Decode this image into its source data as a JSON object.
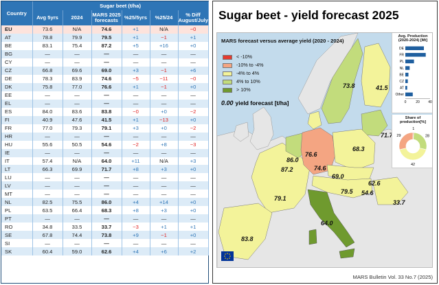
{
  "table": {
    "header_product": "Sugar beet (t/ha)",
    "col_country": "Country",
    "cols": [
      "Avg 5yrs",
      "2024",
      "MARS 2025 forecasts",
      "%25/5yrs",
      "%25/24",
      "% Diff August/July"
    ],
    "rows": [
      {
        "c": "EU",
        "a": "73.6",
        "b": "N/A",
        "f": "74.6",
        "p5": "+1",
        "p24": "N/A",
        "d": "−0",
        "eu": true
      },
      {
        "c": "AT",
        "a": "78.8",
        "b": "79.9",
        "f": "79.5",
        "p5": "+1",
        "p24": "−1",
        "d": "+1"
      },
      {
        "c": "BE",
        "a": "83.1",
        "b": "75.4",
        "f": "87.2",
        "p5": "+5",
        "p24": "+16",
        "d": "+0"
      },
      {
        "c": "BG",
        "a": "—",
        "b": "—",
        "f": "—",
        "p5": "—",
        "p24": "—",
        "d": "—"
      },
      {
        "c": "CY",
        "a": "—",
        "b": "—",
        "f": "—",
        "p5": "—",
        "p24": "—",
        "d": "—"
      },
      {
        "c": "CZ",
        "a": "66.8",
        "b": "69.6",
        "f": "69.0",
        "p5": "+3",
        "p24": "−1",
        "d": "+6"
      },
      {
        "c": "DE",
        "a": "78.3",
        "b": "83.9",
        "f": "74.6",
        "p5": "−5",
        "p24": "−11",
        "d": "−0"
      },
      {
        "c": "DK",
        "a": "75.8",
        "b": "77.0",
        "f": "76.6",
        "p5": "+1",
        "p24": "−1",
        "d": "+0"
      },
      {
        "c": "EE",
        "a": "—",
        "b": "—",
        "f": "—",
        "p5": "—",
        "p24": "—",
        "d": "—"
      },
      {
        "c": "EL",
        "a": "—",
        "b": "—",
        "f": "—",
        "p5": "—",
        "p24": "—",
        "d": "—"
      },
      {
        "c": "ES",
        "a": "84.0",
        "b": "83.6",
        "f": "83.8",
        "p5": "−0",
        "p24": "+0",
        "d": "−2"
      },
      {
        "c": "FI",
        "a": "40.9",
        "b": "47.6",
        "f": "41.5",
        "p5": "+1",
        "p24": "−13",
        "d": "+0"
      },
      {
        "c": "FR",
        "a": "77.0",
        "b": "79.3",
        "f": "79.1",
        "p5": "+3",
        "p24": "+0",
        "d": "−2"
      },
      {
        "c": "HR",
        "a": "—",
        "b": "—",
        "f": "—",
        "p5": "—",
        "p24": "—",
        "d": "—"
      },
      {
        "c": "HU",
        "a": "55.6",
        "b": "50.5",
        "f": "54.6",
        "p5": "−2",
        "p24": "+8",
        "d": "−3"
      },
      {
        "c": "IE",
        "a": "—",
        "b": "—",
        "f": "—",
        "p5": "—",
        "p24": "—",
        "d": "—"
      },
      {
        "c": "IT",
        "a": "57.4",
        "b": "N/A",
        "f": "64.0",
        "p5": "+11",
        "p24": "N/A",
        "d": "+3"
      },
      {
        "c": "LT",
        "a": "66.3",
        "b": "69.9",
        "f": "71.7",
        "p5": "+8",
        "p24": "+3",
        "d": "+0"
      },
      {
        "c": "LU",
        "a": "—",
        "b": "—",
        "f": "—",
        "p5": "—",
        "p24": "—",
        "d": "—"
      },
      {
        "c": "LV",
        "a": "—",
        "b": "—",
        "f": "—",
        "p5": "—",
        "p24": "—",
        "d": "—"
      },
      {
        "c": "MT",
        "a": "—",
        "b": "—",
        "f": "—",
        "p5": "—",
        "p24": "—",
        "d": "—"
      },
      {
        "c": "NL",
        "a": "82.5",
        "b": "75.5",
        "f": "86.0",
        "p5": "+4",
        "p24": "+14",
        "d": "+0"
      },
      {
        "c": "PL",
        "a": "63.5",
        "b": "66.4",
        "f": "68.3",
        "p5": "+8",
        "p24": "+3",
        "d": "+0"
      },
      {
        "c": "PT",
        "a": "—",
        "b": "—",
        "f": "—",
        "p5": "—",
        "p24": "—",
        "d": "—"
      },
      {
        "c": "RO",
        "a": "34.8",
        "b": "33.5",
        "f": "33.7",
        "p5": "−3",
        "p24": "+1",
        "d": "+1"
      },
      {
        "c": "SE",
        "a": "67.8",
        "b": "74.4",
        "f": "73.8",
        "p5": "+9",
        "p24": "−1",
        "d": "+0"
      },
      {
        "c": "SI",
        "a": "—",
        "b": "—",
        "f": "—",
        "p5": "—",
        "p24": "—",
        "d": "—"
      },
      {
        "c": "SK",
        "a": "60.4",
        "b": "59.0",
        "f": "62.6",
        "p5": "+4",
        "p24": "+6",
        "d": "+2"
      }
    ]
  },
  "map": {
    "title": "Sugar beet - yield forecast 2025",
    "legend_title": "MARS forecast versus average yield (2020 - 2024)",
    "legend": [
      {
        "label": "< -10%",
        "color": "#e53a2f"
      },
      {
        "label": "-10% to -4%",
        "color": "#f4a582"
      },
      {
        "label": "-4% to 4%",
        "color": "#f3f39a"
      },
      {
        "label": "4% to 10%",
        "color": "#c2dc7c"
      },
      {
        "label": "> 10%",
        "color": "#6f9a2e"
      }
    ],
    "zero_value": "0.00",
    "zero_label": "yield forecast [t/ha]",
    "labels": [
      {
        "v": "73.8",
        "k": "SE"
      },
      {
        "v": "41.5",
        "k": "FI"
      },
      {
        "v": "76.6",
        "k": "DK"
      },
      {
        "v": "71.7",
        "k": "LT"
      },
      {
        "v": "86.0",
        "k": "NL"
      },
      {
        "v": "87.2",
        "k": "BE"
      },
      {
        "v": "74.6",
        "k": "DE"
      },
      {
        "v": "68.3",
        "k": "PL"
      },
      {
        "v": "69.0",
        "k": "CZ"
      },
      {
        "v": "62.6",
        "k": "SK"
      },
      {
        "v": "54.6",
        "k": "HU"
      },
      {
        "v": "79.5",
        "k": "AT"
      },
      {
        "v": "79.1",
        "k": "FR"
      },
      {
        "v": "33.7",
        "k": "RO"
      },
      {
        "v": "64.0",
        "k": "IT"
      },
      {
        "v": "83.8",
        "k": "ES"
      }
    ],
    "footer": "MARS Bulletin Vol. 33 No.7 (2025)",
    "colors": {
      "sea": "#c3dbec",
      "land_other": "#e6e6e6",
      "yellow": "#f3f39a",
      "lightgreen": "#c2dc7c",
      "darkgreen": "#6f9a2e",
      "salmon": "#f4a582"
    }
  },
  "chart_data": [
    {
      "type": "bar",
      "title": "Avg. Production (2020-2024) [Mt]",
      "categories": [
        "DE",
        "FR",
        "PL",
        "NL",
        "BE",
        "CZ",
        "AT",
        "Other"
      ],
      "values": [
        30,
        33,
        14,
        7,
        5,
        4,
        3,
        12
      ],
      "xticks": [
        "0",
        "20",
        "40"
      ],
      "xlim": [
        0,
        40
      ],
      "color": "#1f5f9f"
    },
    {
      "type": "pie",
      "title": "Share of production[%]",
      "labels": [
        "1",
        "28",
        "42",
        "29"
      ],
      "values": [
        1,
        28,
        42,
        29
      ],
      "colors": [
        "#e53a2f",
        "#c2dc7c",
        "#f3f39a",
        "#f4a582"
      ],
      "donut": true
    }
  ]
}
